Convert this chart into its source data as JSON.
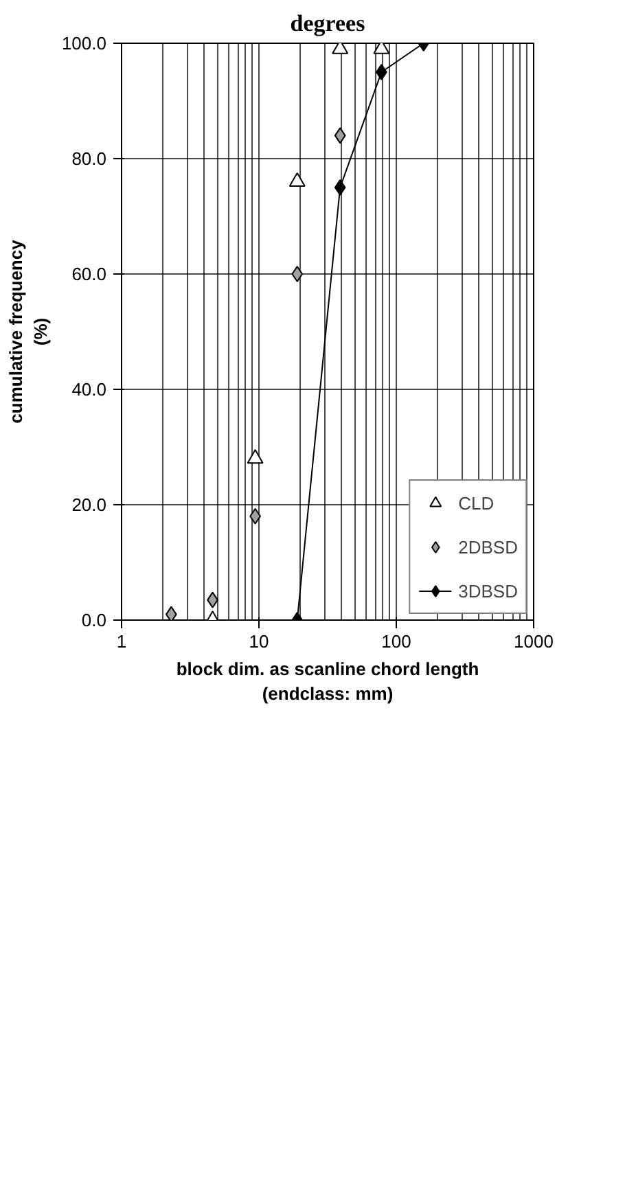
{
  "chart_data": {
    "type": "scatter",
    "title": "degrees",
    "xlabel": "block dim. as scanline chord length\n(endclass: mm)",
    "ylabel": "cumulative frequency\n(%)",
    "log": "x",
    "xlim": [
      1,
      1000
    ],
    "xticks": [
      1,
      10,
      100,
      1000
    ],
    "ylim": [
      0,
      100
    ],
    "yticks": [
      {
        "value": 0,
        "label": "0.0"
      },
      {
        "value": 20,
        "label": "20.0"
      },
      {
        "value": 40,
        "label": "40.0"
      },
      {
        "value": 60,
        "label": "60.0"
      },
      {
        "value": 80,
        "label": "80.0"
      },
      {
        "value": 100,
        "label": "100.0"
      }
    ],
    "grid": true,
    "legend": "bottom right",
    "series": [
      {
        "name": "CLD",
        "marker": "triangle",
        "color": "#000000",
        "x": [
          4.6,
          9.4,
          19,
          39,
          78
        ],
        "values": [
          0,
          28,
          76,
          99,
          99
        ]
      },
      {
        "name": "2DBSD",
        "marker": "diamond",
        "color": "#a0a0a0",
        "x": [
          2.3,
          4.6,
          9.4,
          19,
          39
        ],
        "values": [
          1,
          3.5,
          18,
          60,
          84
        ]
      },
      {
        "name": "3DBSD",
        "type": "line",
        "marker": "diamond",
        "color": "#000000",
        "x": [
          19,
          39,
          78,
          158
        ],
        "values": [
          0,
          75,
          95,
          100
        ]
      }
    ]
  }
}
